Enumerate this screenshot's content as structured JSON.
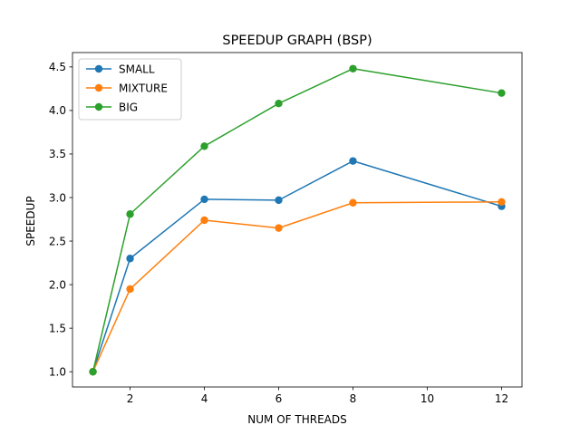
{
  "chart_data": {
    "type": "line",
    "title": "SPEEDUP GRAPH (BSP)",
    "xlabel": "NUM OF THREADS",
    "ylabel": "SPEEDUP",
    "x": [
      1,
      2,
      4,
      6,
      8,
      12
    ],
    "xlim": [
      0.45,
      12.55
    ],
    "ylim": [
      0.825,
      4.665
    ],
    "xticks": [
      2,
      4,
      6,
      8,
      10,
      12
    ],
    "yticks": [
      1.0,
      1.5,
      2.0,
      2.5,
      3.0,
      3.5,
      4.0,
      4.5
    ],
    "grid": false,
    "legend_position": "top-left",
    "series": [
      {
        "name": "SMALL",
        "color": "#1f77b4",
        "values": [
          1.0,
          2.3,
          2.98,
          2.97,
          3.42,
          2.9
        ]
      },
      {
        "name": "MIXTURE",
        "color": "#ff7f0e",
        "values": [
          1.0,
          1.95,
          2.74,
          2.65,
          2.94,
          2.95
        ]
      },
      {
        "name": "BIG",
        "color": "#2ca02c",
        "values": [
          1.0,
          2.81,
          3.59,
          4.08,
          4.48,
          4.2
        ]
      }
    ]
  }
}
